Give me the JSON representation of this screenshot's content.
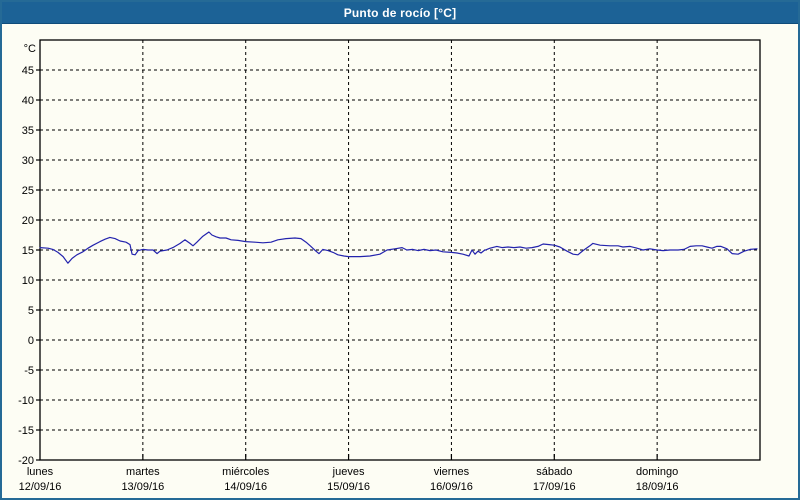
{
  "window": {
    "title": "Punto de rocío [°C]",
    "colors": {
      "titlebar_bg": "#1c6296",
      "window_border": "#256a96",
      "background": "#fdfdf4",
      "axis": "#000000",
      "grid": "#000000",
      "line": "#2323ad"
    }
  },
  "chart_data": {
    "type": "line",
    "title": "Punto de rocío [°C]",
    "xlabel": "",
    "ylabel": "°C",
    "ylim": [
      -20,
      50
    ],
    "yticks": [
      45,
      40,
      35,
      30,
      25,
      20,
      15,
      10,
      5,
      0,
      -5,
      -10,
      -15,
      -20
    ],
    "grid": "dashed",
    "legend_position": "none",
    "x_days": [
      {
        "name": "lunes",
        "date": "12/09/16"
      },
      {
        "name": "martes",
        "date": "13/09/16"
      },
      {
        "name": "miércoles",
        "date": "14/09/16"
      },
      {
        "name": "jueves",
        "date": "15/09/16"
      },
      {
        "name": "viernes",
        "date": "16/09/16"
      },
      {
        "name": "sábado",
        "date": "17/09/16"
      },
      {
        "name": "domingo",
        "date": "18/09/16"
      }
    ],
    "x_total_hours": 168,
    "series": [
      {
        "name": "Punto de rocío",
        "color": "#2323ad",
        "x_unit": "hours_from_2016-09-12_00:00",
        "points": [
          [
            0,
            15.4
          ],
          [
            1.9,
            15.3
          ],
          [
            3.0,
            15.1
          ],
          [
            4.2,
            14.6
          ],
          [
            5.4,
            13.9
          ],
          [
            6.5,
            12.8
          ],
          [
            7.5,
            13.6
          ],
          [
            8.6,
            14.2
          ],
          [
            10.0,
            14.7
          ],
          [
            11.2,
            15.3
          ],
          [
            12.4,
            15.8
          ],
          [
            14.0,
            16.4
          ],
          [
            15.2,
            16.8
          ],
          [
            16.3,
            17.1
          ],
          [
            17.5,
            16.9
          ],
          [
            18.7,
            16.5
          ],
          [
            20.1,
            16.3
          ],
          [
            21.0,
            15.9
          ],
          [
            21.5,
            14.3
          ],
          [
            22.2,
            14.2
          ],
          [
            22.9,
            14.9
          ],
          [
            24.0,
            15.1
          ],
          [
            25.2,
            15.0
          ],
          [
            26.4,
            15.0
          ],
          [
            27.3,
            14.4
          ],
          [
            28.0,
            14.8
          ],
          [
            29.6,
            15.0
          ],
          [
            31.0,
            15.4
          ],
          [
            32.7,
            16.1
          ],
          [
            33.8,
            16.7
          ],
          [
            35.0,
            16.1
          ],
          [
            35.7,
            15.7
          ],
          [
            36.6,
            16.3
          ],
          [
            38.0,
            17.3
          ],
          [
            39.4,
            18.0
          ],
          [
            40.1,
            17.5
          ],
          [
            41.1,
            17.2
          ],
          [
            42.0,
            17.0
          ],
          [
            43.4,
            17.0
          ],
          [
            44.6,
            16.7
          ],
          [
            46.2,
            16.6
          ],
          [
            48.0,
            16.4
          ],
          [
            50.2,
            16.3
          ],
          [
            52.0,
            16.2
          ],
          [
            53.9,
            16.3
          ],
          [
            55.5,
            16.7
          ],
          [
            57.4,
            16.9
          ],
          [
            59.5,
            17.0
          ],
          [
            60.9,
            16.9
          ],
          [
            62.1,
            16.3
          ],
          [
            63.2,
            15.6
          ],
          [
            64.4,
            14.8
          ],
          [
            65.1,
            14.4
          ],
          [
            66.0,
            15.1
          ],
          [
            67.2,
            14.9
          ],
          [
            68.4,
            14.6
          ],
          [
            69.5,
            14.2
          ],
          [
            70.9,
            14.0
          ],
          [
            72.0,
            13.9
          ],
          [
            74.7,
            13.9
          ],
          [
            77.0,
            14.0
          ],
          [
            79.3,
            14.3
          ],
          [
            81.0,
            15.0
          ],
          [
            82.8,
            15.2
          ],
          [
            84.5,
            15.4
          ],
          [
            85.6,
            15.0
          ],
          [
            87.0,
            15.1
          ],
          [
            88.2,
            14.9
          ],
          [
            89.6,
            15.1
          ],
          [
            91.0,
            14.9
          ],
          [
            92.4,
            15.0
          ],
          [
            94.0,
            14.7
          ],
          [
            96.0,
            14.6
          ],
          [
            97.3,
            14.5
          ],
          [
            98.7,
            14.3
          ],
          [
            100.1,
            14.0
          ],
          [
            100.8,
            15.0
          ],
          [
            101.5,
            14.3
          ],
          [
            102.2,
            14.8
          ],
          [
            102.9,
            14.5
          ],
          [
            103.6,
            14.9
          ],
          [
            105.0,
            15.3
          ],
          [
            106.6,
            15.6
          ],
          [
            107.8,
            15.4
          ],
          [
            109.2,
            15.5
          ],
          [
            110.6,
            15.4
          ],
          [
            112.0,
            15.5
          ],
          [
            113.4,
            15.3
          ],
          [
            114.8,
            15.4
          ],
          [
            116.2,
            15.6
          ],
          [
            117.4,
            16.0
          ],
          [
            118.8,
            15.9
          ],
          [
            120.0,
            15.8
          ],
          [
            121.3,
            15.5
          ],
          [
            123.0,
            14.8
          ],
          [
            124.4,
            14.3
          ],
          [
            125.5,
            14.2
          ],
          [
            126.7,
            14.9
          ],
          [
            128.3,
            15.7
          ],
          [
            129.0,
            16.1
          ],
          [
            130.7,
            15.8
          ],
          [
            133.0,
            15.7
          ],
          [
            134.9,
            15.7
          ],
          [
            136.0,
            15.5
          ],
          [
            137.7,
            15.6
          ],
          [
            139.3,
            15.3
          ],
          [
            140.7,
            15.0
          ],
          [
            142.3,
            15.2
          ],
          [
            144.0,
            15.0
          ],
          [
            145.4,
            14.9
          ],
          [
            147.0,
            15.0
          ],
          [
            148.9,
            15.0
          ],
          [
            150.3,
            15.1
          ],
          [
            151.7,
            15.6
          ],
          [
            153.1,
            15.7
          ],
          [
            154.5,
            15.7
          ],
          [
            155.6,
            15.5
          ],
          [
            156.8,
            15.3
          ],
          [
            157.9,
            15.6
          ],
          [
            158.9,
            15.6
          ],
          [
            160.3,
            15.2
          ],
          [
            161.5,
            14.4
          ],
          [
            162.9,
            14.3
          ],
          [
            164.3,
            14.8
          ],
          [
            165.7,
            15.1
          ],
          [
            167.3,
            15.2
          ]
        ]
      }
    ]
  }
}
